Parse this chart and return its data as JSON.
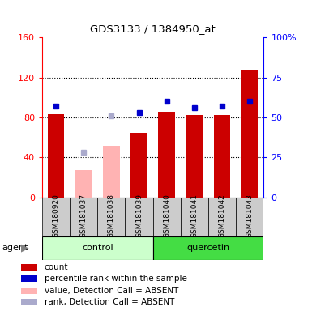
{
  "title": "GDS3133 / 1384950_at",
  "samples": [
    "GSM180920",
    "GSM181037",
    "GSM181038",
    "GSM181039",
    "GSM181040",
    "GSM181041",
    "GSM181042",
    "GSM181043"
  ],
  "absent": [
    false,
    true,
    true,
    false,
    false,
    false,
    false,
    false
  ],
  "count_values": [
    83,
    27,
    52,
    65,
    86,
    82,
    82,
    127
  ],
  "rank_values": [
    57,
    28,
    51,
    53,
    60,
    56,
    57,
    60
  ],
  "left_ylim": [
    0,
    160
  ],
  "right_ylim": [
    0,
    100
  ],
  "left_yticks": [
    0,
    40,
    80,
    120,
    160
  ],
  "right_yticks": [
    0,
    25,
    50,
    75,
    100
  ],
  "right_yticklabels": [
    "0",
    "25",
    "50",
    "75",
    "100%"
  ],
  "bar_color_present": "#cc0000",
  "bar_color_absent": "#ffb3b3",
  "rank_color_present": "#0000cc",
  "rank_color_absent": "#aaaacc",
  "control_bg": "#ccffcc",
  "quercetin_bg": "#44dd44",
  "sample_bg": "#cccccc",
  "legend_items": [
    {
      "color": "#cc0000",
      "label": "count"
    },
    {
      "color": "#0000cc",
      "label": "percentile rank within the sample"
    },
    {
      "color": "#ffb3b3",
      "label": "value, Detection Call = ABSENT"
    },
    {
      "color": "#aaaacc",
      "label": "rank, Detection Call = ABSENT"
    }
  ],
  "grid_lines": [
    40,
    80,
    120
  ],
  "group_names": [
    "control",
    "quercetin"
  ],
  "group_ranges": [
    [
      0,
      3
    ],
    [
      4,
      7
    ]
  ]
}
